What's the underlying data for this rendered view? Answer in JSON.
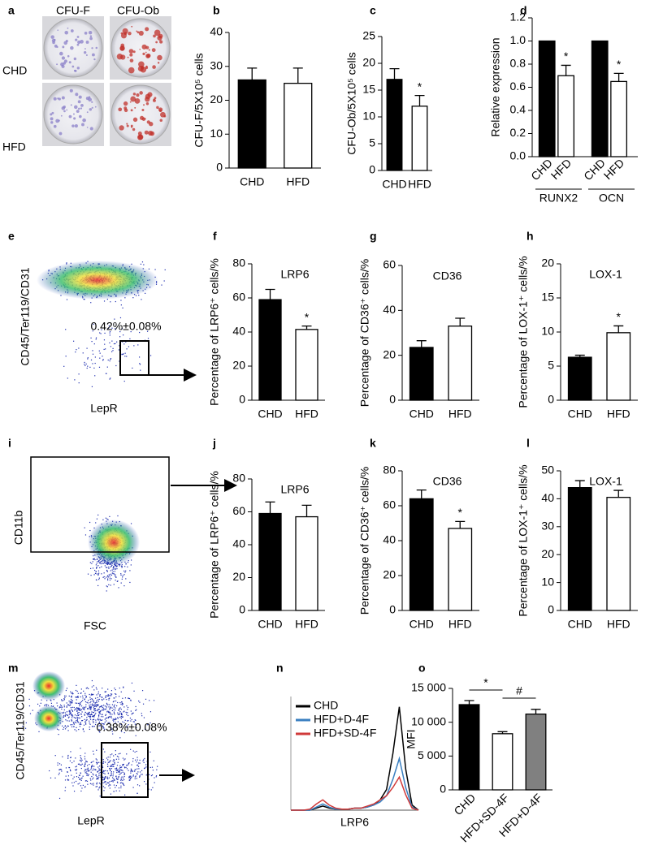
{
  "chart_data": [
    {
      "type": "bar",
      "panel": "b",
      "ylabel": "CFU-F/5X10⁵ cells",
      "categories": [
        "CHD",
        "HFD"
      ],
      "values": [
        26,
        25
      ],
      "errors": [
        3.5,
        4.5
      ],
      "colors": [
        "#000000",
        "#ffffff"
      ],
      "ylim": [
        0,
        40
      ],
      "yticks": [
        0,
        10,
        20,
        30,
        40
      ]
    },
    {
      "type": "bar",
      "panel": "c",
      "ylabel": "CFU-Ob/5X10⁵ cells",
      "categories": [
        "CHD",
        "HFD"
      ],
      "values": [
        17,
        12
      ],
      "errors": [
        2,
        2
      ],
      "annotations": [
        null,
        "*"
      ],
      "colors": [
        "#000000",
        "#ffffff"
      ],
      "ylim": [
        0,
        25
      ],
      "yticks": [
        0,
        5,
        10,
        15,
        20,
        25
      ]
    },
    {
      "type": "grouped_bar",
      "panel": "d",
      "ylabel": "Relative expression",
      "categories": [
        "RUNX2",
        "OCN"
      ],
      "series": [
        {
          "name": "CHD",
          "color": "#000000",
          "values": [
            1,
            1
          ]
        },
        {
          "name": "HFD",
          "color": "#ffffff",
          "values": [
            0.7,
            0.65
          ],
          "errors": [
            0.09,
            0.07
          ],
          "annotations": [
            "*",
            "*"
          ]
        }
      ],
      "ylim": [
        0,
        1.2
      ],
      "yticks": [
        {
          "value": 0,
          "label": "0.0"
        },
        0.2,
        0.4,
        0.6,
        0.8,
        {
          "value": 1,
          "label": "1.0"
        },
        1.2
      ]
    },
    {
      "type": "bar",
      "panel": "f",
      "title": "LRP6",
      "ylabel": "Percentage of LRP6⁺ cells/%",
      "categories": [
        "CHD",
        "HFD"
      ],
      "values": [
        59,
        41.5
      ],
      "errors": [
        6,
        2
      ],
      "annotations": [
        null,
        "*"
      ],
      "colors": [
        "#000000",
        "#ffffff"
      ],
      "ylim": [
        0,
        80
      ],
      "yticks": [
        0,
        20,
        40,
        60,
        80
      ]
    },
    {
      "type": "bar",
      "panel": "g",
      "title": "CD36",
      "ylabel": "Percentage of CD36⁺ cells/%",
      "categories": [
        "CHD",
        "HFD"
      ],
      "values": [
        23.5,
        33
      ],
      "errors": [
        3,
        3.5
      ],
      "colors": [
        "#000000",
        "#ffffff"
      ],
      "ylim": [
        0,
        60
      ],
      "yticks": [
        0,
        20,
        40,
        60
      ]
    },
    {
      "type": "bar",
      "panel": "h",
      "title": "LOX-1",
      "ylabel": "Percentage of LOX-1⁺ cells/%",
      "categories": [
        "CHD",
        "HFD"
      ],
      "values": [
        6.3,
        9.9
      ],
      "errors": [
        0.3,
        1
      ],
      "annotations": [
        null,
        "*"
      ],
      "colors": [
        "#000000",
        "#ffffff"
      ],
      "ylim": [
        0,
        20
      ],
      "yticks": [
        0,
        5,
        10,
        15,
        20
      ]
    },
    {
      "type": "bar",
      "panel": "j",
      "title": "LRP6",
      "ylabel": "Percentage of LRP6⁺ cells/%",
      "categories": [
        "CHD",
        "HFD"
      ],
      "values": [
        59,
        57
      ],
      "errors": [
        7,
        7
      ],
      "colors": [
        "#000000",
        "#ffffff"
      ],
      "ylim": [
        0,
        80
      ],
      "yticks": [
        0,
        20,
        40,
        60,
        80
      ]
    },
    {
      "type": "bar",
      "panel": "k",
      "title": "CD36",
      "ylabel": "Percentage of CD36⁺ cells/%",
      "categories": [
        "CHD",
        "HFD"
      ],
      "values": [
        64,
        47
      ],
      "errors": [
        5,
        4
      ],
      "annotations": [
        null,
        "*"
      ],
      "colors": [
        "#000000",
        "#ffffff"
      ],
      "ylim": [
        0,
        80
      ],
      "yticks": [
        0,
        20,
        40,
        60,
        80
      ]
    },
    {
      "type": "bar",
      "panel": "l",
      "title": "LOX-1",
      "ylabel": "Percentage of LOX-1⁺ cells/%",
      "categories": [
        "CHD",
        "HFD"
      ],
      "values": [
        44,
        40.5
      ],
      "errors": [
        2.5,
        2.5
      ],
      "colors": [
        "#000000",
        "#ffffff"
      ],
      "ylim": [
        0,
        50
      ],
      "yticks": [
        0,
        10,
        20,
        30,
        40,
        50
      ]
    },
    {
      "type": "line",
      "panel": "n",
      "xlabel": "LRP6",
      "x": [
        0,
        5,
        10,
        15,
        20,
        25,
        30,
        35,
        40,
        45,
        50,
        55,
        60,
        65,
        70,
        75,
        80,
        85,
        90,
        95,
        100
      ],
      "series": [
        {
          "name": "CHD",
          "color": "#000000",
          "values": [
            0,
            0,
            0,
            0,
            2,
            4,
            2,
            1,
            1,
            1,
            2,
            2,
            3,
            5,
            10,
            20,
            55,
            100,
            40,
            5,
            0
          ]
        },
        {
          "name": "HFD+D-4F",
          "color": "#3a7fc0",
          "values": [
            0,
            0,
            0,
            0,
            3,
            6,
            3,
            1,
            1,
            1,
            2,
            2,
            3,
            5,
            8,
            14,
            30,
            50,
            22,
            3,
            0
          ]
        },
        {
          "name": "HFD+SD-4F",
          "color": "#d03a3a",
          "values": [
            0,
            0,
            0,
            1,
            6,
            10,
            5,
            2,
            1,
            1,
            2,
            2,
            4,
            6,
            10,
            14,
            22,
            32,
            15,
            2,
            0
          ]
        }
      ],
      "xlim": [
        0,
        100
      ],
      "ylim": [
        0,
        110
      ],
      "legend": "upper left"
    },
    {
      "type": "bar",
      "panel": "o",
      "ylabel": "MFI",
      "categories": [
        "CHD",
        "HFD+SD-4F",
        "HFD+D-4F"
      ],
      "values": [
        12600,
        8300,
        11200
      ],
      "errors": [
        600,
        300,
        700
      ],
      "colors": [
        "#000000",
        "#ffffff",
        "#808080"
      ],
      "comparisons": [
        "*",
        "#"
      ],
      "ylim": [
        0,
        15000
      ],
      "yticks": [
        0,
        {
          "value": 5000,
          "label": "5 000"
        },
        {
          "value": 10000,
          "label": "10 000"
        },
        {
          "value": 15000,
          "label": "15 000"
        }
      ]
    }
  ],
  "images": [
    {
      "panel": "a",
      "columns": [
        "CFU-F",
        "CFU-Ob"
      ],
      "rows": [
        "CHD",
        "HFD"
      ]
    },
    {
      "panel": "e",
      "ylabel": "CD45/Ter119/CD31",
      "xlabel": "LepR",
      "gate_label": "0.42%±0.08%"
    },
    {
      "panel": "i",
      "ylabel": "CD11b",
      "xlabel": "FSC"
    },
    {
      "panel": "m",
      "ylabel": "CD45/Ter119/CD31",
      "xlabel": "LepR",
      "gate_label": "0.38%±0.08%"
    }
  ]
}
